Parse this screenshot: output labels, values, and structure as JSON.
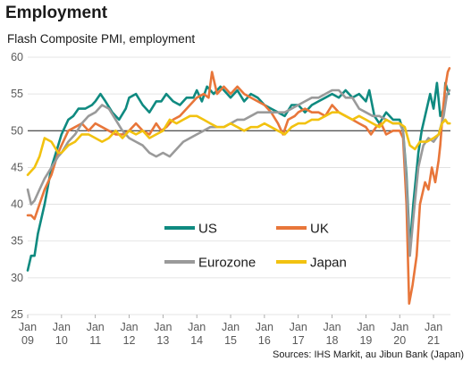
{
  "title": "Employment",
  "subtitle": "Flash Composite  PMI, employment",
  "source": "Sources: IHS Markit, au Jibun Bank (Japan)",
  "chart_data": {
    "type": "line",
    "ylim": [
      25,
      60
    ],
    "yticks": [
      25,
      30,
      35,
      40,
      45,
      50,
      55,
      60
    ],
    "xlim": [
      2009.0,
      2021.5
    ],
    "xticks": [
      {
        "x": 2009,
        "month": "Jan",
        "year": "09"
      },
      {
        "x": 2010,
        "month": "Jan",
        "year": "10"
      },
      {
        "x": 2011,
        "month": "Jan",
        "year": "11"
      },
      {
        "x": 2012,
        "month": "Jan",
        "year": "12"
      },
      {
        "x": 2013,
        "month": "Jan",
        "year": "13"
      },
      {
        "x": 2014,
        "month": "Jan",
        "year": "14"
      },
      {
        "x": 2015,
        "month": "Jan",
        "year": "15"
      },
      {
        "x": 2016,
        "month": "Jan",
        "year": "16"
      },
      {
        "x": 2017,
        "month": "Jan",
        "year": "17"
      },
      {
        "x": 2018,
        "month": "Jan",
        "year": "18"
      },
      {
        "x": 2019,
        "month": "Jan",
        "year": "19"
      },
      {
        "x": 2020,
        "month": "Jan",
        "year": "20"
      },
      {
        "x": 2021,
        "month": "Jan",
        "year": "21"
      }
    ],
    "reference_line": 50,
    "grid": "horizontal",
    "legend_position": "bottom-center-inside",
    "series": [
      {
        "name": "US",
        "color": "#0f8a80",
        "points": [
          [
            2009.0,
            31
          ],
          [
            2009.1,
            33
          ],
          [
            2009.2,
            33
          ],
          [
            2009.3,
            36
          ],
          [
            2009.5,
            40
          ],
          [
            2009.7,
            45
          ],
          [
            2009.9,
            48
          ],
          [
            2010.0,
            49.5
          ],
          [
            2010.2,
            51.5
          ],
          [
            2010.35,
            52
          ],
          [
            2010.5,
            53
          ],
          [
            2010.7,
            53
          ],
          [
            2010.9,
            53.5
          ],
          [
            2011.0,
            54
          ],
          [
            2011.15,
            55
          ],
          [
            2011.3,
            54
          ],
          [
            2011.5,
            52.5
          ],
          [
            2011.7,
            51.5
          ],
          [
            2011.9,
            53
          ],
          [
            2012.0,
            54.5
          ],
          [
            2012.2,
            55
          ],
          [
            2012.4,
            53.5
          ],
          [
            2012.6,
            52.5
          ],
          [
            2012.8,
            54
          ],
          [
            2012.95,
            54
          ],
          [
            2013.1,
            55
          ],
          [
            2013.3,
            54
          ],
          [
            2013.5,
            53.5
          ],
          [
            2013.7,
            54.5
          ],
          [
            2013.9,
            54.5
          ],
          [
            2014.0,
            55.5
          ],
          [
            2014.15,
            54
          ],
          [
            2014.3,
            56
          ],
          [
            2014.5,
            55
          ],
          [
            2014.7,
            56
          ],
          [
            2014.9,
            55
          ],
          [
            2015.0,
            54.5
          ],
          [
            2015.2,
            55.5
          ],
          [
            2015.4,
            54
          ],
          [
            2015.6,
            55
          ],
          [
            2015.8,
            54.5
          ],
          [
            2016.0,
            53.5
          ],
          [
            2016.2,
            53
          ],
          [
            2016.4,
            52.5
          ],
          [
            2016.6,
            52
          ],
          [
            2016.8,
            53.5
          ],
          [
            2017.0,
            53.5
          ],
          [
            2017.2,
            52.5
          ],
          [
            2017.4,
            53.5
          ],
          [
            2017.6,
            54
          ],
          [
            2017.8,
            54.5
          ],
          [
            2018.0,
            55
          ],
          [
            2018.2,
            54.5
          ],
          [
            2018.4,
            55.5
          ],
          [
            2018.6,
            54.5
          ],
          [
            2018.8,
            55
          ],
          [
            2019.0,
            54
          ],
          [
            2019.1,
            55.5
          ],
          [
            2019.25,
            52
          ],
          [
            2019.4,
            51
          ],
          [
            2019.6,
            52.5
          ],
          [
            2019.8,
            51.5
          ],
          [
            2020.0,
            51.5
          ],
          [
            2020.1,
            50
          ],
          [
            2020.2,
            44
          ],
          [
            2020.3,
            34
          ],
          [
            2020.4,
            40
          ],
          [
            2020.55,
            47
          ],
          [
            2020.65,
            50
          ],
          [
            2020.75,
            52
          ],
          [
            2020.9,
            55
          ],
          [
            2021.0,
            53
          ],
          [
            2021.1,
            56.5
          ],
          [
            2021.2,
            52
          ],
          [
            2021.3,
            53
          ],
          [
            2021.35,
            56.5
          ],
          [
            2021.45,
            55
          ]
        ]
      },
      {
        "name": "UK",
        "color": "#e8763a",
        "points": [
          [
            2009.0,
            38.5
          ],
          [
            2009.1,
            38.5
          ],
          [
            2009.2,
            38
          ],
          [
            2009.35,
            40
          ],
          [
            2009.5,
            42
          ],
          [
            2009.7,
            44
          ],
          [
            2009.9,
            47
          ],
          [
            2010.0,
            48
          ],
          [
            2010.2,
            50
          ],
          [
            2010.4,
            50.5
          ],
          [
            2010.6,
            51
          ],
          [
            2010.8,
            50
          ],
          [
            2011.0,
            51
          ],
          [
            2011.2,
            50.5
          ],
          [
            2011.4,
            50
          ],
          [
            2011.6,
            49.5
          ],
          [
            2011.8,
            49.5
          ],
          [
            2012.0,
            50
          ],
          [
            2012.2,
            51
          ],
          [
            2012.4,
            50
          ],
          [
            2012.6,
            49.5
          ],
          [
            2012.8,
            51
          ],
          [
            2012.95,
            50
          ],
          [
            2013.1,
            50.5
          ],
          [
            2013.3,
            51.5
          ],
          [
            2013.5,
            52
          ],
          [
            2013.7,
            53
          ],
          [
            2013.9,
            54
          ],
          [
            2014.0,
            54.5
          ],
          [
            2014.2,
            55
          ],
          [
            2014.35,
            54.5
          ],
          [
            2014.45,
            58
          ],
          [
            2014.6,
            55
          ],
          [
            2014.8,
            56
          ],
          [
            2015.0,
            55
          ],
          [
            2015.2,
            56
          ],
          [
            2015.4,
            55
          ],
          [
            2015.6,
            54.5
          ],
          [
            2015.8,
            54
          ],
          [
            2016.0,
            53.5
          ],
          [
            2016.2,
            52.5
          ],
          [
            2016.4,
            51
          ],
          [
            2016.55,
            49.5
          ],
          [
            2016.7,
            51.5
          ],
          [
            2016.9,
            52
          ],
          [
            2017.0,
            52.5
          ],
          [
            2017.2,
            53
          ],
          [
            2017.4,
            52.5
          ],
          [
            2017.6,
            52.5
          ],
          [
            2017.8,
            52
          ],
          [
            2018.0,
            53.5
          ],
          [
            2018.2,
            52.5
          ],
          [
            2018.4,
            52
          ],
          [
            2018.6,
            51.5
          ],
          [
            2018.8,
            51
          ],
          [
            2019.0,
            50.5
          ],
          [
            2019.15,
            49.5
          ],
          [
            2019.3,
            50.5
          ],
          [
            2019.45,
            51
          ],
          [
            2019.6,
            49.5
          ],
          [
            2019.8,
            50
          ],
          [
            2020.0,
            50
          ],
          [
            2020.1,
            49
          ],
          [
            2020.2,
            40
          ],
          [
            2020.28,
            26.5
          ],
          [
            2020.38,
            29
          ],
          [
            2020.5,
            33
          ],
          [
            2020.6,
            40
          ],
          [
            2020.75,
            43
          ],
          [
            2020.85,
            42
          ],
          [
            2020.95,
            45
          ],
          [
            2021.05,
            43
          ],
          [
            2021.15,
            46
          ],
          [
            2021.2,
            48
          ],
          [
            2021.28,
            53
          ],
          [
            2021.35,
            56
          ],
          [
            2021.42,
            58
          ],
          [
            2021.47,
            58.5
          ]
        ]
      },
      {
        "name": "Eurozone",
        "color": "#9a9a9a",
        "points": [
          [
            2009.0,
            42
          ],
          [
            2009.1,
            40
          ],
          [
            2009.2,
            40.5
          ],
          [
            2009.35,
            42
          ],
          [
            2009.5,
            43.5
          ],
          [
            2009.7,
            45
          ],
          [
            2009.9,
            46.5
          ],
          [
            2010.0,
            47
          ],
          [
            2010.2,
            48.5
          ],
          [
            2010.4,
            49.5
          ],
          [
            2010.6,
            51
          ],
          [
            2010.8,
            52
          ],
          [
            2011.0,
            52.5
          ],
          [
            2011.2,
            53.5
          ],
          [
            2011.4,
            53
          ],
          [
            2011.6,
            51.5
          ],
          [
            2011.8,
            50
          ],
          [
            2012.0,
            49
          ],
          [
            2012.2,
            48.5
          ],
          [
            2012.4,
            48
          ],
          [
            2012.6,
            47
          ],
          [
            2012.8,
            46.5
          ],
          [
            2013.0,
            47
          ],
          [
            2013.2,
            46.5
          ],
          [
            2013.4,
            47.5
          ],
          [
            2013.6,
            48.5
          ],
          [
            2013.8,
            49
          ],
          [
            2014.0,
            49.5
          ],
          [
            2014.2,
            50
          ],
          [
            2014.4,
            50.5
          ],
          [
            2014.6,
            50.5
          ],
          [
            2014.8,
            50.5
          ],
          [
            2015.0,
            51
          ],
          [
            2015.2,
            51.5
          ],
          [
            2015.4,
            51.5
          ],
          [
            2015.6,
            52
          ],
          [
            2015.8,
            52.5
          ],
          [
            2016.0,
            52.5
          ],
          [
            2016.2,
            52.5
          ],
          [
            2016.4,
            52.5
          ],
          [
            2016.6,
            52.5
          ],
          [
            2016.8,
            53
          ],
          [
            2017.0,
            53.5
          ],
          [
            2017.2,
            54
          ],
          [
            2017.4,
            54.5
          ],
          [
            2017.6,
            54.5
          ],
          [
            2017.8,
            55
          ],
          [
            2018.0,
            55.5
          ],
          [
            2018.2,
            55.5
          ],
          [
            2018.4,
            54.5
          ],
          [
            2018.6,
            54.5
          ],
          [
            2018.8,
            53
          ],
          [
            2019.0,
            52.5
          ],
          [
            2019.2,
            52
          ],
          [
            2019.4,
            52
          ],
          [
            2019.6,
            51.5
          ],
          [
            2019.8,
            51
          ],
          [
            2020.0,
            51
          ],
          [
            2020.1,
            50
          ],
          [
            2020.2,
            43
          ],
          [
            2020.3,
            33
          ],
          [
            2020.4,
            38
          ],
          [
            2020.55,
            45
          ],
          [
            2020.7,
            48
          ],
          [
            2020.85,
            49
          ],
          [
            2021.0,
            48.5
          ],
          [
            2021.15,
            49.5
          ],
          [
            2021.3,
            52
          ],
          [
            2021.4,
            55
          ],
          [
            2021.47,
            55.5
          ]
        ]
      },
      {
        "name": "Japan",
        "color": "#f2c210",
        "points": [
          [
            2009.0,
            44
          ],
          [
            2009.1,
            44.5
          ],
          [
            2009.2,
            45
          ],
          [
            2009.35,
            46.5
          ],
          [
            2009.5,
            49
          ],
          [
            2009.7,
            48.5
          ],
          [
            2009.9,
            47
          ],
          [
            2010.0,
            47
          ],
          [
            2010.2,
            48
          ],
          [
            2010.4,
            48.5
          ],
          [
            2010.6,
            49.5
          ],
          [
            2010.8,
            49.5
          ],
          [
            2011.0,
            49
          ],
          [
            2011.2,
            48.5
          ],
          [
            2011.4,
            49
          ],
          [
            2011.6,
            50
          ],
          [
            2011.8,
            49
          ],
          [
            2012.0,
            50
          ],
          [
            2012.2,
            49.5
          ],
          [
            2012.4,
            50
          ],
          [
            2012.6,
            49
          ],
          [
            2012.8,
            49.5
          ],
          [
            2013.0,
            50
          ],
          [
            2013.2,
            51.5
          ],
          [
            2013.4,
            51
          ],
          [
            2013.6,
            51.5
          ],
          [
            2013.8,
            52
          ],
          [
            2014.0,
            52
          ],
          [
            2014.2,
            51.5
          ],
          [
            2014.4,
            51
          ],
          [
            2014.6,
            50.5
          ],
          [
            2014.8,
            50.5
          ],
          [
            2015.0,
            51
          ],
          [
            2015.2,
            50.5
          ],
          [
            2015.4,
            50
          ],
          [
            2015.6,
            50.5
          ],
          [
            2015.8,
            50.5
          ],
          [
            2016.0,
            51
          ],
          [
            2016.2,
            50.5
          ],
          [
            2016.4,
            50
          ],
          [
            2016.6,
            49.5
          ],
          [
            2016.8,
            50.5
          ],
          [
            2017.0,
            51
          ],
          [
            2017.2,
            51
          ],
          [
            2017.4,
            51.5
          ],
          [
            2017.6,
            51.5
          ],
          [
            2017.8,
            52
          ],
          [
            2018.0,
            52.5
          ],
          [
            2018.2,
            52.5
          ],
          [
            2018.4,
            52
          ],
          [
            2018.6,
            51.5
          ],
          [
            2018.8,
            52
          ],
          [
            2019.0,
            51.5
          ],
          [
            2019.2,
            51
          ],
          [
            2019.4,
            50.5
          ],
          [
            2019.6,
            51.5
          ],
          [
            2019.8,
            51
          ],
          [
            2020.0,
            51
          ],
          [
            2020.15,
            50.5
          ],
          [
            2020.3,
            48
          ],
          [
            2020.45,
            47.5
          ],
          [
            2020.6,
            48.5
          ],
          [
            2020.8,
            48.5
          ],
          [
            2021.0,
            49
          ],
          [
            2021.15,
            49.5
          ],
          [
            2021.25,
            51
          ],
          [
            2021.35,
            51.5
          ],
          [
            2021.42,
            51
          ],
          [
            2021.48,
            51
          ]
        ]
      }
    ]
  }
}
